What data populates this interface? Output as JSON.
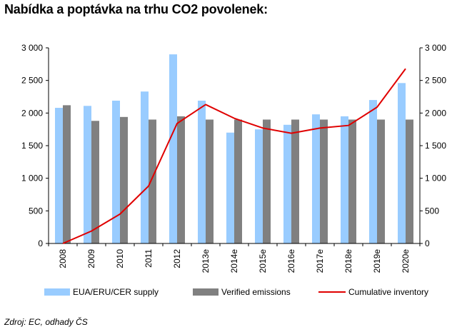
{
  "title": "Nabídka a poptávka na trhu CO2 povolenek:",
  "source": "Zdroj: EC, odhady ČS",
  "chart_data": {
    "type": "bar",
    "categories": [
      "2008",
      "2009",
      "2010",
      "2011",
      "2012",
      "2013e",
      "2014e",
      "2015e",
      "2016e",
      "2017e",
      "2018e",
      "2019e",
      "2020e"
    ],
    "ylim": [
      0,
      3000
    ],
    "y_ticks": [
      0,
      500,
      1000,
      1500,
      2000,
      2500,
      3000
    ],
    "y_tick_labels": [
      "0",
      "500",
      "1 000",
      "1 500",
      "2 000",
      "2 500",
      "3 000"
    ],
    "secondary_axis": {
      "ylim": [
        0,
        3000
      ],
      "tick_labels": [
        "0",
        "500",
        "1 000",
        "1 500",
        "2 000",
        "2 500",
        "3 000"
      ]
    },
    "grid": false,
    "legend_position": "bottom",
    "series": [
      {
        "name": "EUA/ERU/CER supply",
        "type": "bar",
        "color": "#99ccff",
        "values": [
          2080,
          2110,
          2190,
          2330,
          2900,
          2190,
          1700,
          1750,
          1820,
          1980,
          1950,
          2200,
          2460
        ]
      },
      {
        "name": "Verified emissions",
        "type": "bar",
        "color": "#808080",
        "values": [
          2120,
          1880,
          1940,
          1900,
          1950,
          1900,
          1900,
          1900,
          1900,
          1900,
          1900,
          1900,
          1900
        ]
      },
      {
        "name": "Cumulative inventory",
        "type": "line",
        "color": "#e00000",
        "values": [
          0,
          190,
          450,
          880,
          1840,
          2130,
          1920,
          1770,
          1690,
          1770,
          1810,
          2090,
          2680
        ]
      }
    ]
  }
}
